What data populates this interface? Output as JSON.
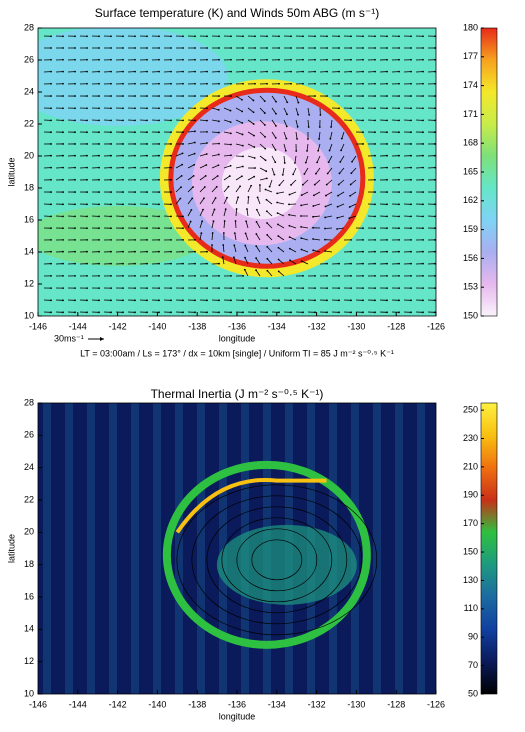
{
  "chart_data": [
    {
      "type": "heatmap",
      "title": "Surface temperature (K) and Winds 50m ABG (m s⁻¹)",
      "subtitle": "LT = 03:00am  /  Ls = 173°  /  dx = 10km [single]  /  Uniform TI = 85 J m⁻² s⁻⁰·⁵ K⁻¹",
      "annotation": "30ms⁻¹",
      "x_label": "longitude",
      "y_label": "latitude",
      "xlim": [
        -146,
        -126
      ],
      "xticks": [
        -146,
        -144,
        -142,
        -140,
        -138,
        -136,
        -134,
        -132,
        -130,
        -128,
        -126
      ],
      "ylim": [
        10,
        28
      ],
      "yticks": [
        10,
        12,
        14,
        16,
        18,
        20,
        22,
        24,
        26,
        28
      ],
      "colorbar": {
        "lim": [
          150,
          180
        ],
        "ticks": [
          150,
          153,
          156,
          159,
          162,
          165,
          168,
          171,
          174,
          177,
          180
        ],
        "colors": [
          "#fbf3fb",
          "#e6b8ee",
          "#a9aff0",
          "#7fd3f5",
          "#66e6c8",
          "#7ee07a",
          "#c8ec4a",
          "#f4e82a",
          "#f7a21e",
          "#e82a1a"
        ]
      }
    },
    {
      "type": "heatmap",
      "title": "Thermal Inertia (J m⁻² s⁻⁰·⁵ K⁻¹)",
      "x_label": "longitude",
      "y_label": "latitude",
      "xlim": [
        -146,
        -126
      ],
      "xticks": [
        -146,
        -144,
        -142,
        -140,
        -138,
        -136,
        -134,
        -132,
        -130,
        -128,
        -126
      ],
      "ylim": [
        10,
        28
      ],
      "yticks": [
        10,
        12,
        14,
        16,
        18,
        20,
        22,
        24,
        26,
        28
      ],
      "colorbar": {
        "lim": [
          50,
          255
        ],
        "ticks": [
          50,
          70,
          90,
          110,
          130,
          150,
          170,
          190,
          210,
          230,
          250
        ],
        "colors": [
          "#000000",
          "#0a1a5a",
          "#1040a0",
          "#1c6aa0",
          "#1e9a80",
          "#2ec040",
          "#c83018",
          "#f07010",
          "#f8c010",
          "#fff040"
        ]
      }
    }
  ]
}
